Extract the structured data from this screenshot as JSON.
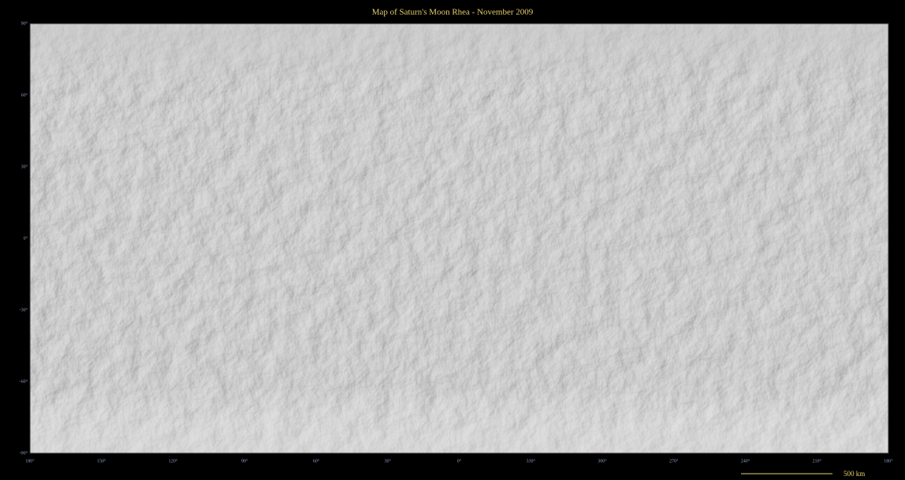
{
  "title": "Map of Saturn's Moon Rhea - November  2009",
  "latitude_labels": [
    "90°",
    "60°",
    "30°",
    "0°",
    "-30°",
    "-60°",
    "-90°"
  ],
  "longitude_labels": [
    "180°",
    "150°",
    "120°",
    "90°",
    "60°",
    "30°",
    "0°",
    "330°",
    "300°",
    "270°",
    "240°",
    "210°",
    "180°"
  ],
  "scale_bar": {
    "label": "500 km"
  }
}
